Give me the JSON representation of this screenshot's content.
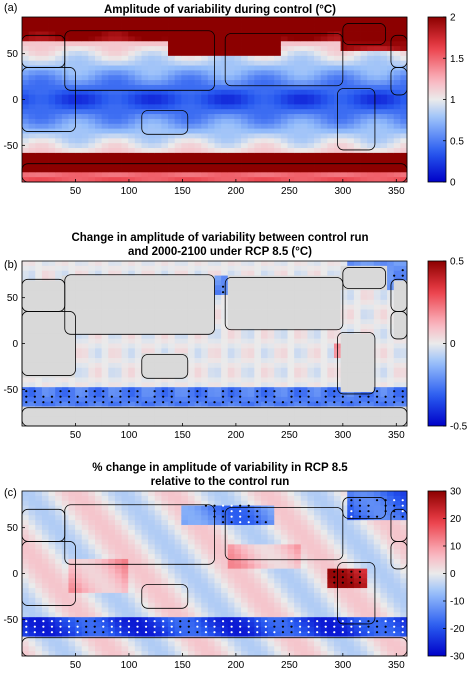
{
  "chart_data": [
    {
      "panel": "(a)",
      "type": "heatmap",
      "title": "Amplitude of variability during control (°C)",
      "x_ticks": [
        50,
        100,
        150,
        200,
        250,
        300,
        350
      ],
      "y_ticks": [
        50,
        0,
        -50
      ],
      "xlim": [
        0,
        360
      ],
      "ylim": [
        -90,
        90
      ],
      "colorbar": {
        "min": 0,
        "max": 2,
        "ticks": [
          "2",
          "1.5",
          "1",
          "0.5",
          "0"
        ],
        "colormap": "blue-white-red"
      },
      "stippling": false,
      "regions": [
        {
          "name": "north-pacific",
          "lon": [
            140,
            240
          ],
          "lat": [
            48,
            78
          ],
          "value": 1.8
        },
        {
          "name": "north-atlantic",
          "lon": [
            300,
            360
          ],
          "lat": [
            55,
            82
          ],
          "value": 1.5
        },
        {
          "name": "arctic-eurasia",
          "lon": [
            0,
            140
          ],
          "lat": [
            68,
            85
          ],
          "value": 1.4
        },
        {
          "name": "southern-ocean",
          "lon": [
            0,
            360
          ],
          "lat": [
            -80,
            -60
          ],
          "value": 1.6
        },
        {
          "name": "south-pacific-maximum",
          "lon": [
            180,
            270
          ],
          "lat": [
            -78,
            -62
          ],
          "value": 1.9
        },
        {
          "name": "tropics",
          "lon": [
            0,
            360
          ],
          "lat": [
            -25,
            25
          ],
          "value": 0.2
        }
      ]
    },
    {
      "panel": "(b)",
      "type": "heatmap",
      "title_lines": [
        "Change in amplitude of variability between control run",
        "and 2000-2100 under RCP 8.5 (°C)"
      ],
      "x_ticks": [
        50,
        100,
        150,
        200,
        250,
        300,
        350
      ],
      "y_ticks": [
        50,
        0,
        -50
      ],
      "xlim": [
        0,
        360
      ],
      "ylim": [
        -90,
        90
      ],
      "colorbar": {
        "min": -0.5,
        "max": 0.5,
        "ticks": [
          "0.5",
          "0",
          "-0.5"
        ],
        "colormap": "blue-white-red"
      },
      "stippling": true,
      "regions": [
        {
          "name": "southern-ocean-band",
          "lon": [
            0,
            360
          ],
          "lat": [
            -65,
            -50
          ],
          "value": -0.3
        },
        {
          "name": "north-pacific",
          "lon": [
            150,
            230
          ],
          "lat": [
            55,
            72
          ],
          "value": -0.25
        },
        {
          "name": "australia",
          "lon": [
            115,
            150
          ],
          "lat": [
            -35,
            -15
          ],
          "value": 0.15
        },
        {
          "name": "amazon",
          "lon": [
            290,
            320
          ],
          "lat": [
            -15,
            0
          ],
          "value": 0.2
        },
        {
          "name": "north-atlantic",
          "lon": [
            310,
            360
          ],
          "lat": [
            60,
            75
          ],
          "value": -0.2
        }
      ]
    },
    {
      "panel": "(c)",
      "type": "heatmap",
      "title_lines": [
        "% change in amplitude of variability in RCP 8.5",
        "relative to the control run"
      ],
      "x_ticks": [
        50,
        100,
        150,
        200,
        250,
        300,
        350
      ],
      "y_ticks": [
        50,
        0,
        -50
      ],
      "xlim": [
        0,
        360
      ],
      "ylim": [
        -90,
        90
      ],
      "colorbar": {
        "min": -30,
        "max": 30,
        "ticks": [
          "30",
          "20",
          "10",
          "0",
          "-10",
          "-20",
          "-30"
        ],
        "colormap": "blue-white-red"
      },
      "stippling": true,
      "regions": [
        {
          "name": "southern-ocean-band",
          "lon": [
            0,
            360
          ],
          "lat": [
            -65,
            -50
          ],
          "value": -25
        },
        {
          "name": "amazon",
          "lon": [
            285,
            320
          ],
          "lat": [
            -15,
            5
          ],
          "value": 25
        },
        {
          "name": "north-pacific",
          "lon": [
            150,
            230
          ],
          "lat": [
            55,
            72
          ],
          "value": -15
        },
        {
          "name": "tropical-indian-ocean",
          "lon": [
            50,
            100
          ],
          "lat": [
            -20,
            15
          ],
          "value": 8
        },
        {
          "name": "north-atlantic",
          "lon": [
            310,
            360
          ],
          "lat": [
            60,
            75
          ],
          "value": -20
        }
      ]
    }
  ]
}
